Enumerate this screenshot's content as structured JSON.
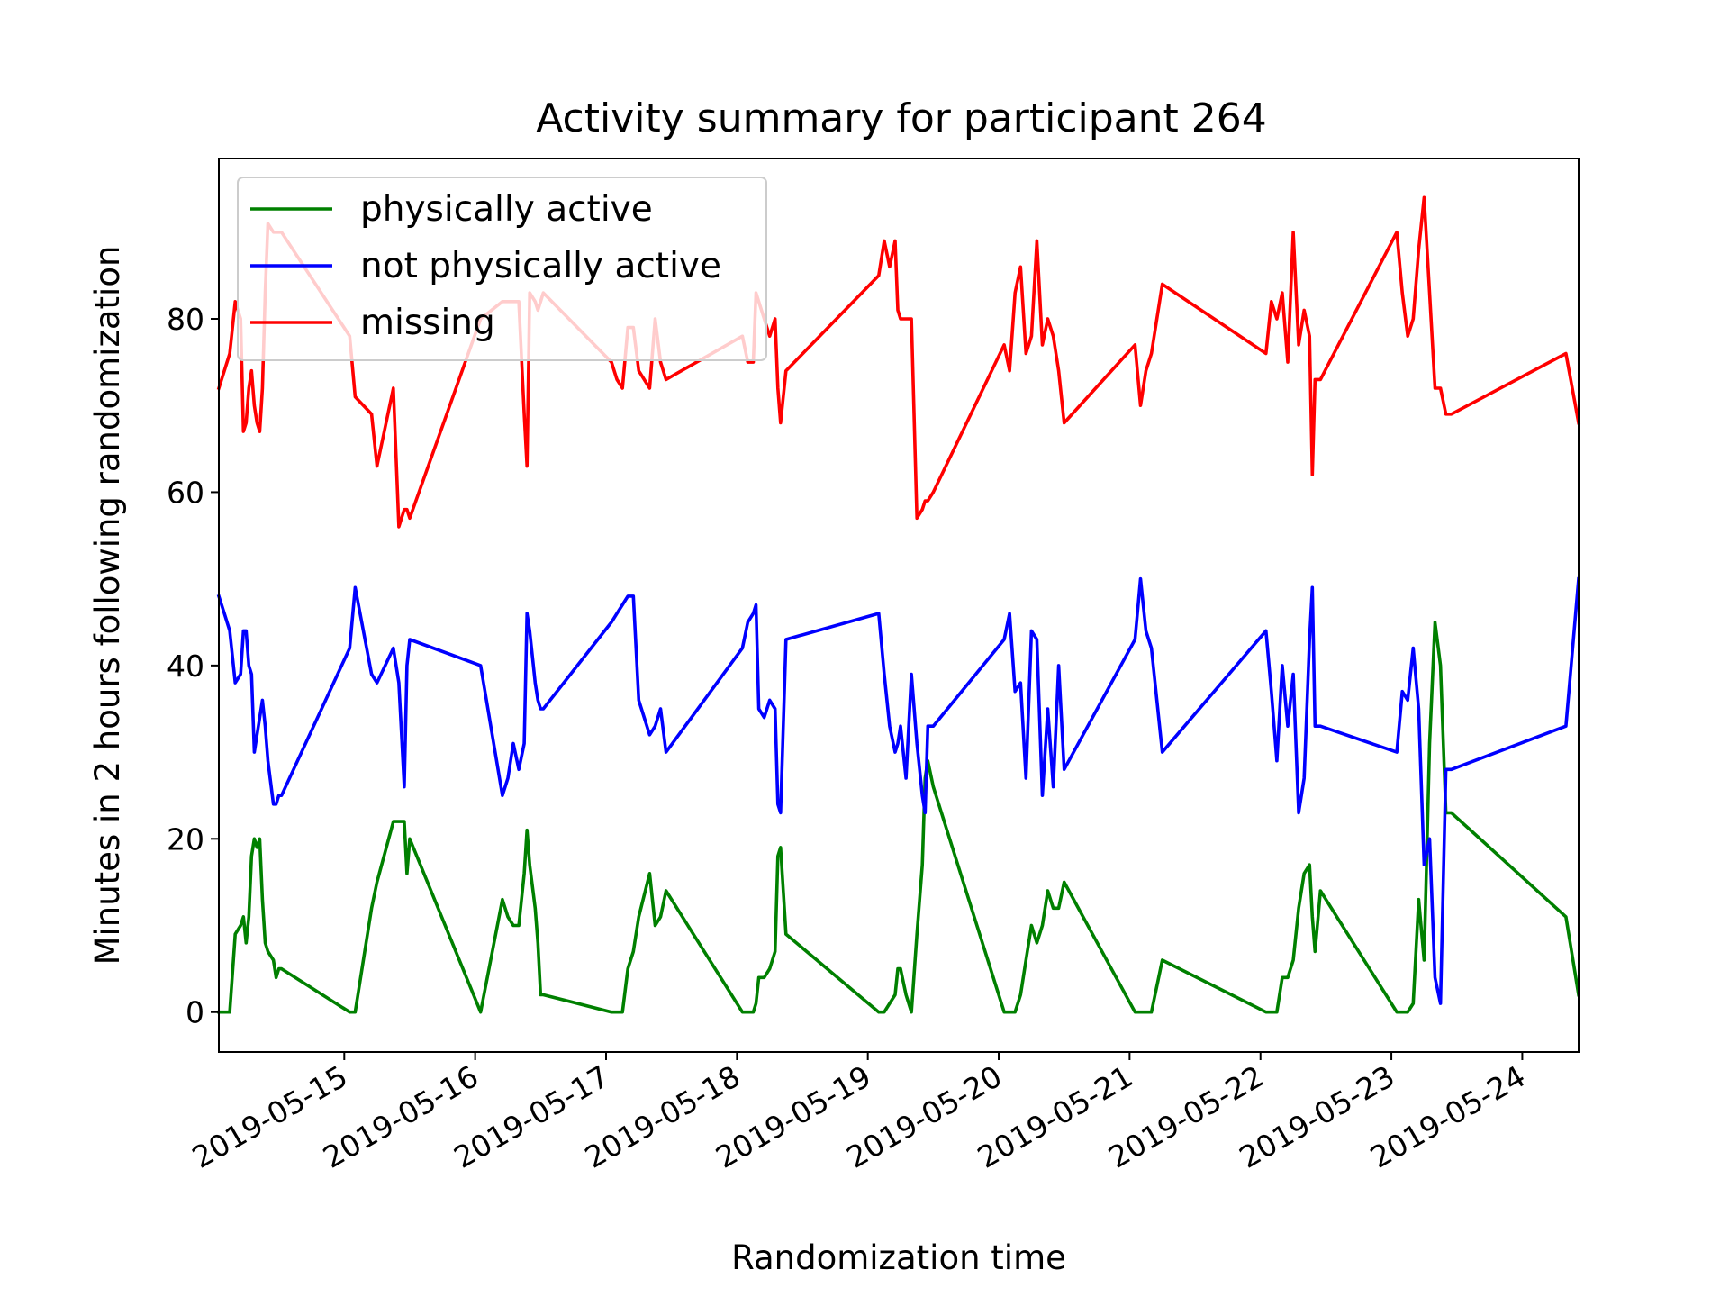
{
  "chart_data": {
    "type": "line",
    "title": "Activity summary for participant 264",
    "xlabel": "Randomization time",
    "ylabel": "Minutes in 2 hours following randomization",
    "x_ticks": [
      "2019-05-15",
      "2019-05-16",
      "2019-05-17",
      "2019-05-18",
      "2019-05-19",
      "2019-05-20",
      "2019-05-21",
      "2019-05-22",
      "2019-05-23",
      "2019-05-24"
    ],
    "y_ticks": [
      0,
      20,
      40,
      60,
      80
    ],
    "xlim": [
      "2019-05-14T01:00",
      "2019-05-24T10:20"
    ],
    "ylim": [
      -4.6,
      98.5
    ],
    "grid": false,
    "legend_position": "top-left",
    "series": [
      {
        "name": "physically active",
        "color": "#008000",
        "x": [
          "2019-05-14T01:00",
          "2019-05-14T02:00",
          "2019-05-14T03:00",
          "2019-05-14T04:00",
          "2019-05-14T05:00",
          "2019-05-14T05:30",
          "2019-05-14T06:00",
          "2019-05-14T06:30",
          "2019-05-14T07:00",
          "2019-05-14T07:30",
          "2019-05-14T08:00",
          "2019-05-14T08:30",
          "2019-05-14T09:00",
          "2019-05-14T09:30",
          "2019-05-14T10:00",
          "2019-05-14T11:00",
          "2019-05-14T11:30",
          "2019-05-14T12:00",
          "2019-05-14T12:30",
          "2019-05-15T01:00",
          "2019-05-15T02:00",
          "2019-05-15T05:00",
          "2019-05-15T06:00",
          "2019-05-15T09:00",
          "2019-05-15T10:00",
          "2019-05-15T11:00",
          "2019-05-15T11:30",
          "2019-05-15T12:00",
          "2019-05-16T01:00",
          "2019-05-16T05:00",
          "2019-05-16T06:00",
          "2019-05-16T07:00",
          "2019-05-16T08:00",
          "2019-05-16T09:00",
          "2019-05-16T09:30",
          "2019-05-16T10:00",
          "2019-05-16T11:00",
          "2019-05-16T11:30",
          "2019-05-16T12:00",
          "2019-05-16T12:30",
          "2019-05-17T01:00",
          "2019-05-17T02:00",
          "2019-05-17T03:00",
          "2019-05-17T04:00",
          "2019-05-17T05:00",
          "2019-05-17T06:00",
          "2019-05-17T08:00",
          "2019-05-17T09:00",
          "2019-05-17T10:00",
          "2019-05-17T11:00",
          "2019-05-18T01:00",
          "2019-05-18T02:00",
          "2019-05-18T03:00",
          "2019-05-18T03:30",
          "2019-05-18T04:00",
          "2019-05-18T05:00",
          "2019-05-18T06:00",
          "2019-05-18T07:00",
          "2019-05-18T07:30",
          "2019-05-18T08:00",
          "2019-05-18T09:00",
          "2019-05-19T02:00",
          "2019-05-19T03:00",
          "2019-05-19T04:00",
          "2019-05-19T05:00",
          "2019-05-19T05:30",
          "2019-05-19T06:00",
          "2019-05-19T07:00",
          "2019-05-19T08:00",
          "2019-05-19T09:00",
          "2019-05-19T10:00",
          "2019-05-19T10:30",
          "2019-05-19T11:00",
          "2019-05-19T12:00",
          "2019-05-20T01:00",
          "2019-05-20T02:00",
          "2019-05-20T03:00",
          "2019-05-20T04:00",
          "2019-05-20T05:00",
          "2019-05-20T06:00",
          "2019-05-20T07:00",
          "2019-05-20T08:00",
          "2019-05-20T09:00",
          "2019-05-20T10:00",
          "2019-05-20T11:00",
          "2019-05-20T12:00",
          "2019-05-21T01:00",
          "2019-05-21T02:00",
          "2019-05-21T03:00",
          "2019-05-21T04:00",
          "2019-05-21T06:00",
          "2019-05-22T01:00",
          "2019-05-22T02:00",
          "2019-05-22T03:00",
          "2019-05-22T04:00",
          "2019-05-22T05:00",
          "2019-05-22T06:00",
          "2019-05-22T07:00",
          "2019-05-22T08:00",
          "2019-05-22T09:00",
          "2019-05-22T09:30",
          "2019-05-22T10:00",
          "2019-05-22T11:00",
          "2019-05-23T01:00",
          "2019-05-23T02:00",
          "2019-05-23T03:00",
          "2019-05-23T04:00",
          "2019-05-23T05:00",
          "2019-05-23T06:00",
          "2019-05-23T07:00",
          "2019-05-23T08:00",
          "2019-05-23T09:00",
          "2019-05-23T10:00",
          "2019-05-23T11:00",
          "2019-05-24T08:00",
          "2019-05-24T10:20"
        ],
        "values": [
          0,
          0,
          0,
          9,
          10,
          11,
          8,
          11,
          18,
          20,
          19,
          20,
          13,
          8,
          7,
          6,
          4,
          5,
          5,
          0,
          0,
          12,
          15,
          22,
          22,
          22,
          16,
          20,
          0,
          13,
          11,
          10,
          10,
          16,
          21,
          17,
          12,
          8,
          2,
          2,
          0,
          0,
          0,
          5,
          7,
          11,
          16,
          10,
          11,
          14,
          0,
          0,
          0,
          1,
          4,
          4,
          5,
          7,
          18,
          19,
          9,
          0,
          0,
          1,
          2,
          5,
          5,
          2,
          0,
          9,
          17,
          27,
          29,
          26,
          0,
          0,
          0,
          2,
          6,
          10,
          8,
          10,
          14,
          12,
          12,
          15,
          0,
          0,
          0,
          0,
          6,
          0,
          0,
          0,
          4,
          4,
          6,
          12,
          16,
          17,
          11,
          7,
          14,
          0,
          0,
          0,
          1,
          13,
          6,
          31,
          45,
          40,
          23,
          23,
          11,
          2
        ]
      },
      {
        "name": "not physically active",
        "color": "#0000ff",
        "x": [
          "2019-05-14T01:00",
          "2019-05-14T02:00",
          "2019-05-14T03:00",
          "2019-05-14T04:00",
          "2019-05-14T05:00",
          "2019-05-14T05:30",
          "2019-05-14T06:00",
          "2019-05-14T06:30",
          "2019-05-14T07:00",
          "2019-05-14T07:30",
          "2019-05-14T08:00",
          "2019-05-14T08:30",
          "2019-05-14T09:00",
          "2019-05-14T09:30",
          "2019-05-14T10:00",
          "2019-05-14T11:00",
          "2019-05-14T11:30",
          "2019-05-14T12:00",
          "2019-05-14T12:30",
          "2019-05-15T01:00",
          "2019-05-15T02:00",
          "2019-05-15T05:00",
          "2019-05-15T06:00",
          "2019-05-15T09:00",
          "2019-05-15T10:00",
          "2019-05-15T11:00",
          "2019-05-15T11:30",
          "2019-05-15T12:00",
          "2019-05-16T01:00",
          "2019-05-16T05:00",
          "2019-05-16T06:00",
          "2019-05-16T07:00",
          "2019-05-16T08:00",
          "2019-05-16T09:00",
          "2019-05-16T09:30",
          "2019-05-16T10:00",
          "2019-05-16T11:00",
          "2019-05-16T11:30",
          "2019-05-16T12:00",
          "2019-05-16T12:30",
          "2019-05-17T01:00",
          "2019-05-17T02:00",
          "2019-05-17T03:00",
          "2019-05-17T04:00",
          "2019-05-17T05:00",
          "2019-05-17T06:00",
          "2019-05-17T08:00",
          "2019-05-17T09:00",
          "2019-05-17T10:00",
          "2019-05-17T11:00",
          "2019-05-18T01:00",
          "2019-05-18T02:00",
          "2019-05-18T03:00",
          "2019-05-18T03:30",
          "2019-05-18T04:00",
          "2019-05-18T05:00",
          "2019-05-18T06:00",
          "2019-05-18T07:00",
          "2019-05-18T07:30",
          "2019-05-18T08:00",
          "2019-05-18T09:00",
          "2019-05-19T02:00",
          "2019-05-19T03:00",
          "2019-05-19T04:00",
          "2019-05-19T05:00",
          "2019-05-19T05:30",
          "2019-05-19T06:00",
          "2019-05-19T07:00",
          "2019-05-19T08:00",
          "2019-05-19T09:00",
          "2019-05-19T10:00",
          "2019-05-19T10:30",
          "2019-05-19T11:00",
          "2019-05-19T12:00",
          "2019-05-20T01:00",
          "2019-05-20T02:00",
          "2019-05-20T03:00",
          "2019-05-20T04:00",
          "2019-05-20T05:00",
          "2019-05-20T06:00",
          "2019-05-20T07:00",
          "2019-05-20T08:00",
          "2019-05-20T09:00",
          "2019-05-20T10:00",
          "2019-05-20T11:00",
          "2019-05-20T12:00",
          "2019-05-21T01:00",
          "2019-05-21T02:00",
          "2019-05-21T03:00",
          "2019-05-21T04:00",
          "2019-05-21T06:00",
          "2019-05-22T01:00",
          "2019-05-22T02:00",
          "2019-05-22T03:00",
          "2019-05-22T04:00",
          "2019-05-22T05:00",
          "2019-05-22T06:00",
          "2019-05-22T07:00",
          "2019-05-22T08:00",
          "2019-05-22T09:00",
          "2019-05-22T09:30",
          "2019-05-22T10:00",
          "2019-05-22T11:00",
          "2019-05-23T01:00",
          "2019-05-23T02:00",
          "2019-05-23T03:00",
          "2019-05-23T04:00",
          "2019-05-23T05:00",
          "2019-05-23T06:00",
          "2019-05-23T07:00",
          "2019-05-23T08:00",
          "2019-05-23T09:00",
          "2019-05-23T10:00",
          "2019-05-23T11:00",
          "2019-05-24T08:00",
          "2019-05-24T10:20"
        ],
        "values": [
          48,
          46,
          44,
          38,
          39,
          44,
          44,
          40,
          39,
          30,
          32,
          34,
          36,
          33,
          29,
          24,
          24,
          25,
          25,
          42,
          49,
          39,
          38,
          42,
          38,
          26,
          40,
          43,
          40,
          25,
          27,
          31,
          28,
          31,
          46,
          44,
          38,
          36,
          35,
          35,
          45,
          46,
          47,
          48,
          48,
          36,
          32,
          33,
          35,
          30,
          42,
          45,
          46,
          47,
          35,
          34,
          36,
          35,
          24,
          23,
          43,
          46,
          39,
          33,
          30,
          31,
          33,
          27,
          39,
          31,
          25,
          23,
          33,
          33,
          43,
          46,
          37,
          38,
          27,
          44,
          43,
          25,
          35,
          26,
          40,
          28,
          43,
          50,
          44,
          42,
          30,
          44,
          37,
          29,
          40,
          33,
          39,
          23,
          27,
          43,
          49,
          33,
          33,
          30,
          37,
          36,
          42,
          35,
          17,
          20,
          4,
          1,
          28,
          28,
          33,
          50
        ]
      },
      {
        "name": "missing",
        "color": "#ff0000",
        "x": [
          "2019-05-14T01:00",
          "2019-05-14T02:00",
          "2019-05-14T03:00",
          "2019-05-14T04:00",
          "2019-05-14T05:00",
          "2019-05-14T05:30",
          "2019-05-14T06:00",
          "2019-05-14T06:30",
          "2019-05-14T07:00",
          "2019-05-14T07:30",
          "2019-05-14T08:00",
          "2019-05-14T08:30",
          "2019-05-14T09:00",
          "2019-05-14T09:30",
          "2019-05-14T10:00",
          "2019-05-14T11:00",
          "2019-05-14T11:30",
          "2019-05-14T12:00",
          "2019-05-14T12:30",
          "2019-05-15T01:00",
          "2019-05-15T02:00",
          "2019-05-15T05:00",
          "2019-05-15T06:00",
          "2019-05-15T09:00",
          "2019-05-15T10:00",
          "2019-05-15T11:00",
          "2019-05-15T11:30",
          "2019-05-15T12:00",
          "2019-05-16T01:00",
          "2019-05-16T05:00",
          "2019-05-16T06:00",
          "2019-05-16T07:00",
          "2019-05-16T08:00",
          "2019-05-16T09:00",
          "2019-05-16T09:30",
          "2019-05-16T10:00",
          "2019-05-16T11:00",
          "2019-05-16T11:30",
          "2019-05-16T12:00",
          "2019-05-16T12:30",
          "2019-05-17T01:00",
          "2019-05-17T02:00",
          "2019-05-17T03:00",
          "2019-05-17T04:00",
          "2019-05-17T05:00",
          "2019-05-17T06:00",
          "2019-05-17T08:00",
          "2019-05-17T09:00",
          "2019-05-17T10:00",
          "2019-05-17T11:00",
          "2019-05-18T01:00",
          "2019-05-18T02:00",
          "2019-05-18T03:00",
          "2019-05-18T03:30",
          "2019-05-18T04:00",
          "2019-05-18T05:00",
          "2019-05-18T06:00",
          "2019-05-18T07:00",
          "2019-05-18T07:30",
          "2019-05-18T08:00",
          "2019-05-18T09:00",
          "2019-05-19T02:00",
          "2019-05-19T03:00",
          "2019-05-19T04:00",
          "2019-05-19T05:00",
          "2019-05-19T05:30",
          "2019-05-19T06:00",
          "2019-05-19T07:00",
          "2019-05-19T08:00",
          "2019-05-19T09:00",
          "2019-05-19T10:00",
          "2019-05-19T10:30",
          "2019-05-19T11:00",
          "2019-05-19T12:00",
          "2019-05-20T01:00",
          "2019-05-20T02:00",
          "2019-05-20T03:00",
          "2019-05-20T04:00",
          "2019-05-20T05:00",
          "2019-05-20T06:00",
          "2019-05-20T07:00",
          "2019-05-20T08:00",
          "2019-05-20T09:00",
          "2019-05-20T10:00",
          "2019-05-20T11:00",
          "2019-05-20T12:00",
          "2019-05-21T01:00",
          "2019-05-21T02:00",
          "2019-05-21T03:00",
          "2019-05-21T04:00",
          "2019-05-21T06:00",
          "2019-05-22T01:00",
          "2019-05-22T02:00",
          "2019-05-22T03:00",
          "2019-05-22T04:00",
          "2019-05-22T05:00",
          "2019-05-22T06:00",
          "2019-05-22T07:00",
          "2019-05-22T08:00",
          "2019-05-22T09:00",
          "2019-05-22T09:30",
          "2019-05-22T10:00",
          "2019-05-22T11:00",
          "2019-05-23T01:00",
          "2019-05-23T02:00",
          "2019-05-23T03:00",
          "2019-05-23T04:00",
          "2019-05-23T05:00",
          "2019-05-23T06:00",
          "2019-05-23T07:00",
          "2019-05-23T08:00",
          "2019-05-23T09:00",
          "2019-05-23T10:00",
          "2019-05-23T11:00",
          "2019-05-24T08:00",
          "2019-05-24T10:20"
        ],
        "values": [
          72,
          74,
          76,
          82,
          80,
          67,
          68,
          72,
          74,
          70,
          68,
          67,
          72,
          83,
          91,
          90,
          90,
          90,
          90,
          78,
          71,
          69,
          63,
          72,
          56,
          58,
          58,
          57,
          80,
          82,
          82,
          82,
          82,
          69,
          63,
          83,
          82,
          81,
          82,
          83,
          75,
          73,
          72,
          79,
          79,
          74,
          72,
          80,
          75,
          73,
          78,
          75,
          75,
          83,
          82,
          80,
          78,
          80,
          72,
          68,
          74,
          85,
          89,
          86,
          89,
          81,
          80,
          80,
          80,
          57,
          58,
          59,
          59,
          60,
          77,
          74,
          83,
          86,
          76,
          78,
          89,
          77,
          80,
          78,
          74,
          68,
          77,
          70,
          74,
          76,
          84,
          76,
          82,
          80,
          83,
          75,
          90,
          77,
          81,
          78,
          62,
          73,
          73,
          90,
          83,
          78,
          80,
          88,
          94,
          83,
          72,
          72,
          69,
          69,
          76,
          68
        ]
      }
    ]
  }
}
